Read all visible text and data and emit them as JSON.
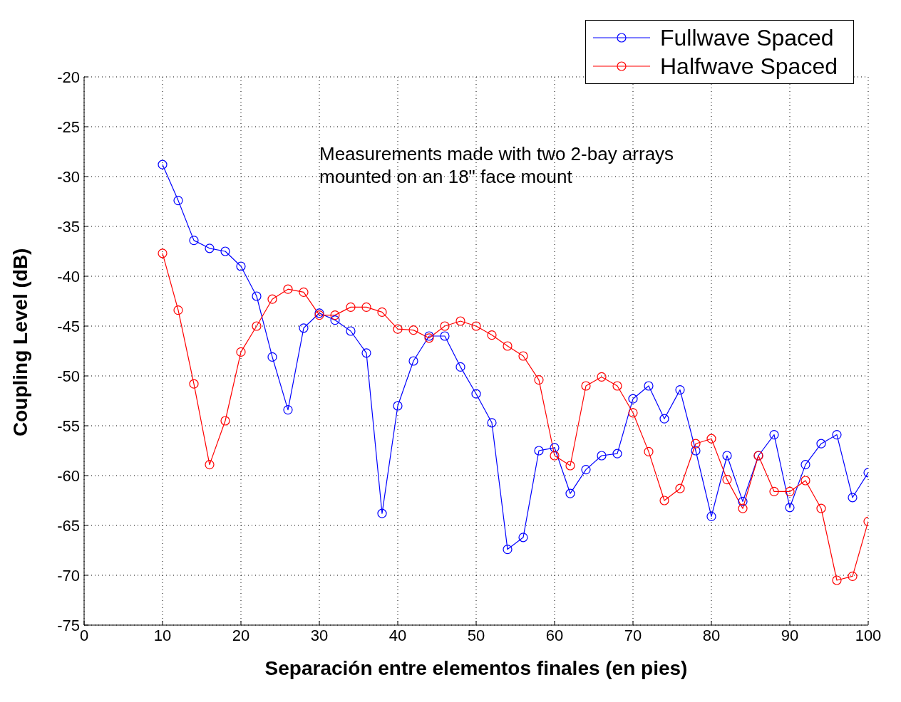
{
  "chart_data": {
    "type": "line",
    "xlabel": "Separación entre elementos finales (en pies)",
    "ylabel": "Coupling Level (dB)",
    "annotations": [
      "Measurements made with two 2-bay arrays mounted on an 18\" face mount"
    ],
    "x": [
      10,
      12,
      14,
      16,
      18,
      20,
      22,
      24,
      26,
      28,
      30,
      32,
      34,
      36,
      38,
      40,
      42,
      44,
      46,
      48,
      50,
      52,
      54,
      56,
      58,
      60,
      62,
      64,
      66,
      68,
      70,
      72,
      74,
      76,
      78,
      80,
      82,
      84,
      86,
      88,
      90,
      92,
      94,
      96,
      98,
      100
    ],
    "series": [
      {
        "name": "Fullwave Spaced",
        "color": "#0000ff",
        "values": [
          -28.8,
          -32.4,
          -36.4,
          -37.2,
          -37.5,
          -39.0,
          -42.0,
          -48.1,
          -53.4,
          -45.2,
          -43.7,
          -44.4,
          -45.5,
          -47.7,
          -63.8,
          -53.0,
          -48.5,
          -46.0,
          -46.0,
          -49.1,
          -51.8,
          -54.7,
          -67.4,
          -66.2,
          -57.5,
          -57.2,
          -61.8,
          -59.4,
          -58.0,
          -57.8,
          -52.3,
          -51.0,
          -54.3,
          -51.4,
          -57.5,
          -64.1,
          -58.0,
          -62.6,
          -58.0,
          -55.9,
          -63.2,
          -58.9,
          -56.8,
          -55.9,
          -62.2,
          -59.7
        ]
      },
      {
        "name": "Halfwave Spaced",
        "color": "#ff0000",
        "values": [
          -37.7,
          -43.4,
          -50.8,
          -58.9,
          -54.5,
          -47.6,
          -45.0,
          -42.3,
          -41.3,
          -41.6,
          -43.9,
          -43.9,
          -43.1,
          -43.1,
          -43.6,
          -45.3,
          -45.4,
          -46.2,
          -45.0,
          -44.5,
          -45.0,
          -45.9,
          -47.0,
          -48.0,
          -50.4,
          -58.0,
          -59.0,
          -51.0,
          -50.1,
          -51.0,
          -53.7,
          -57.6,
          -62.5,
          -61.3,
          -56.8,
          -56.3,
          -60.4,
          -63.3,
          -58.0,
          -61.6,
          -61.6,
          -60.5,
          -63.3,
          -70.5,
          -70.1,
          -64.6
        ]
      }
    ],
    "xlim": [
      0,
      100
    ],
    "xticks": [
      0,
      10,
      20,
      30,
      40,
      50,
      60,
      70,
      80,
      90,
      100
    ],
    "ylim": [
      -75,
      -20
    ],
    "yticks": [
      -75,
      -70,
      -65,
      -60,
      -55,
      -50,
      -45,
      -40,
      -35,
      -30,
      -25,
      -20
    ],
    "grid": true,
    "legend": "top right",
    "marker": "circle",
    "line_style": "solid"
  }
}
